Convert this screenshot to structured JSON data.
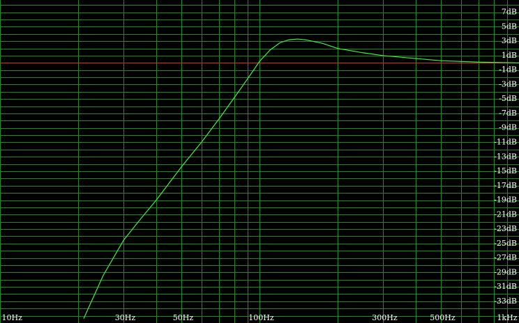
{
  "chart_data": {
    "type": "line",
    "log_x": true,
    "x": [
      21,
      25,
      30,
      35,
      40,
      50,
      60,
      70,
      80,
      90,
      100,
      110,
      120,
      130,
      140,
      150,
      175,
      200,
      250,
      300,
      400,
      500,
      700,
      1000
    ],
    "series": [
      {
        "color": "#44ee44",
        "values": [
          -35.4,
          -29.4,
          -24.5,
          -21.5,
          -19.0,
          -14.4,
          -10.9,
          -7.7,
          -4.8,
          -2.2,
          0.2,
          1.8,
          2.8,
          3.2,
          3.3,
          3.2,
          2.7,
          2.0,
          1.4,
          1.0,
          0.6,
          0.3,
          0.1,
          0.0
        ]
      }
    ],
    "xlim": [
      10,
      1000
    ],
    "ylim": [
      -36,
      8.7
    ],
    "xticks": [
      {
        "value": 10,
        "label": "10Hz"
      },
      {
        "value": 30,
        "label": "30Hz"
      },
      {
        "value": 50,
        "label": "50Hz"
      },
      {
        "value": 100,
        "label": "100Hz"
      },
      {
        "value": 300,
        "label": "300Hz"
      },
      {
        "value": 500,
        "label": "500Hz"
      },
      {
        "value": 1000,
        "label": "1kHz"
      }
    ],
    "yticks": [
      {
        "value": 7,
        "label": "7dB"
      },
      {
        "value": 5,
        "label": "5dB"
      },
      {
        "value": 3,
        "label": "3dB"
      },
      {
        "value": 1,
        "label": "1dB"
      },
      {
        "value": -1,
        "label": "-1dB"
      },
      {
        "value": -3,
        "label": "-3dB"
      },
      {
        "value": -5,
        "label": "-5dB"
      },
      {
        "value": -7,
        "label": "-7dB"
      },
      {
        "value": -9,
        "label": "-9dB"
      },
      {
        "value": -11,
        "label": "-11dB"
      },
      {
        "value": -13,
        "label": "-13dB"
      },
      {
        "value": -15,
        "label": "-15dB"
      },
      {
        "value": -17,
        "label": "-17dB"
      },
      {
        "value": -19,
        "label": "-19dB"
      },
      {
        "value": -21,
        "label": "-21dB"
      },
      {
        "value": -23,
        "label": "-23dB"
      },
      {
        "value": -25,
        "label": "-25dB"
      },
      {
        "value": -27,
        "label": "-27dB"
      },
      {
        "value": -29,
        "label": "-29dB"
      },
      {
        "value": -31,
        "label": "-31dB"
      },
      {
        "value": -33,
        "label": "-33dB"
      }
    ],
    "grid": true,
    "grid_color": "#1f8a1f",
    "ygrid_step": 1,
    "reference_line": 0,
    "reference_color": "#c83a1e"
  }
}
